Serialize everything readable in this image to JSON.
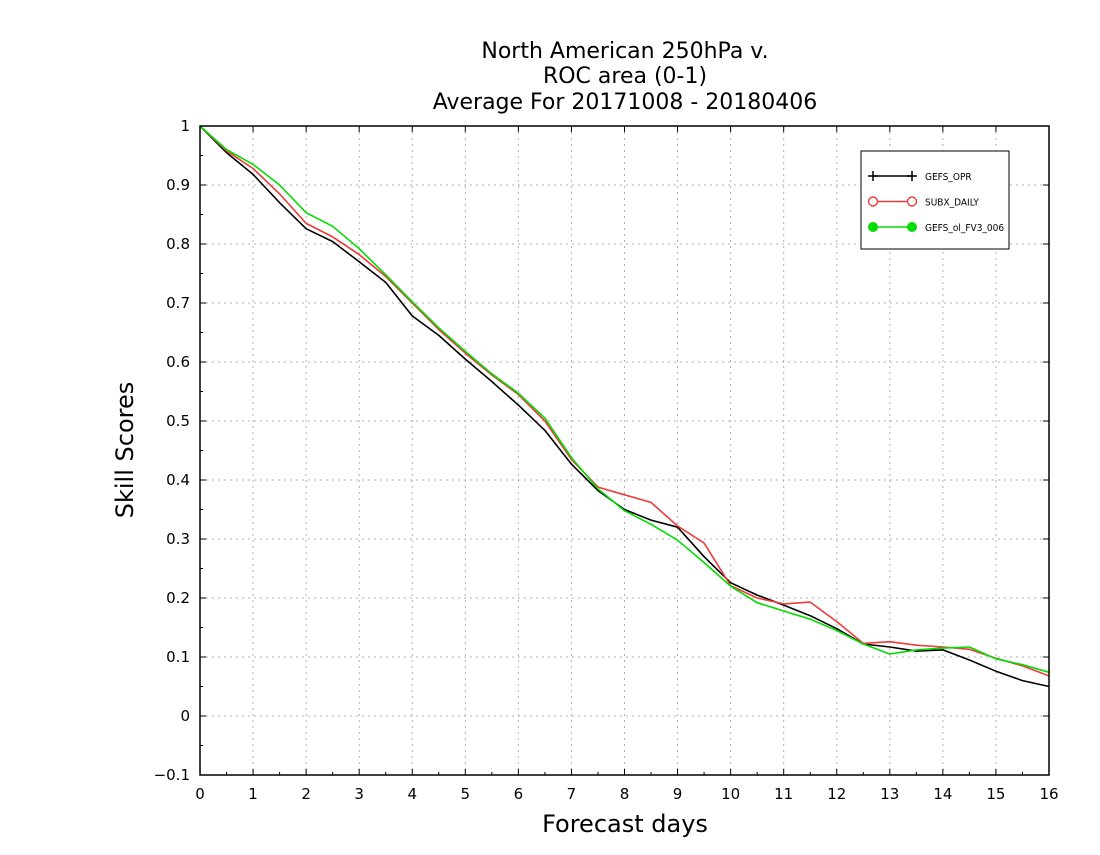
{
  "chart_data": {
    "type": "line",
    "title_lines": [
      "North American 250hPa v.",
      "ROC area (0-1)",
      "Average For 20171008 - 20180406"
    ],
    "xlabel": "Forecast days",
    "ylabel": "Skill Scores",
    "xlim": [
      0,
      16
    ],
    "ylim": [
      -0.1,
      1
    ],
    "x_ticks": [
      "0",
      "1",
      "2",
      "3",
      "4",
      "5",
      "6",
      "7",
      "8",
      "9",
      "10",
      "11",
      "12",
      "13",
      "14",
      "15",
      "16"
    ],
    "y_ticks": [
      "−0.1",
      "0",
      "0.1",
      "0.2",
      "0.3",
      "0.4",
      "0.5",
      "0.6",
      "0.7",
      "0.8",
      "0.9",
      "1"
    ],
    "grid": true,
    "legend_position": "top-right",
    "x": [
      0,
      0.5,
      1,
      1.5,
      2,
      2.5,
      3,
      3.5,
      4,
      4.5,
      5,
      5.5,
      6,
      6.5,
      7,
      7.5,
      8,
      8.5,
      9,
      9.5,
      10,
      10.5,
      11,
      11.5,
      12,
      12.5,
      13,
      13.5,
      14,
      14.5,
      15,
      15.5,
      16
    ],
    "series": [
      {
        "name": "GEFS_OPR",
        "color": "#000000",
        "marker": "plus",
        "values": [
          1.0,
          0.955,
          0.918,
          0.87,
          0.826,
          0.804,
          0.77,
          0.735,
          0.678,
          0.645,
          0.605,
          0.567,
          0.527,
          0.484,
          0.427,
          0.382,
          0.35,
          0.332,
          0.32,
          0.27,
          0.226,
          0.205,
          0.188,
          0.17,
          0.148,
          0.122,
          0.117,
          0.11,
          0.112,
          0.095,
          0.076,
          0.06,
          0.05
        ]
      },
      {
        "name": "SUBX_DAILY",
        "color": "#ee3b3b",
        "marker": "open-circle",
        "values": [
          1.0,
          0.958,
          0.928,
          0.885,
          0.835,
          0.812,
          0.782,
          0.745,
          0.7,
          0.655,
          0.615,
          0.578,
          0.545,
          0.5,
          0.435,
          0.388,
          0.375,
          0.362,
          0.322,
          0.293,
          0.221,
          0.2,
          0.19,
          0.193,
          0.16,
          0.123,
          0.126,
          0.12,
          0.117,
          0.113,
          0.098,
          0.085,
          0.068
        ]
      },
      {
        "name": "GEFS_ol_FV3_006",
        "color": "#00dd00",
        "marker": "filled-circle",
        "values": [
          1.0,
          0.96,
          0.935,
          0.9,
          0.853,
          0.83,
          0.792,
          0.748,
          0.702,
          0.658,
          0.618,
          0.58,
          0.547,
          0.505,
          0.438,
          0.385,
          0.348,
          0.325,
          0.298,
          0.26,
          0.22,
          0.192,
          0.178,
          0.164,
          0.145,
          0.122,
          0.105,
          0.112,
          0.115,
          0.117,
          0.097,
          0.087,
          0.074
        ]
      }
    ]
  }
}
